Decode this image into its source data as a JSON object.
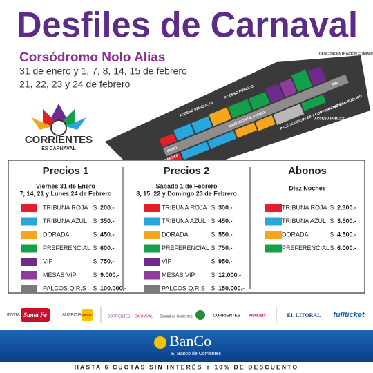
{
  "header": {
    "title": "Desfiles de Carnaval",
    "venue": "Corsódromo Nolo Alias",
    "dates": [
      "31 de enero y 1, 7, 8, 14, 15 de febrero",
      "21, 22, 23 y 24 de febrero"
    ]
  },
  "map": {
    "labels": [
      "ACCESO VEHICULAR",
      "ACCESO PÚBLICO",
      "DIRECCIÓN DE AVANCE",
      "INICIO",
      "FIN",
      "PALCOS OFICIALES Y CORPORATIVOS",
      "ACCESO PÚBLICO",
      "DESCONCENTRACIÓN COMPARSAS",
      "INGRESO COMPARSAS",
      "ACCESO PÚBLICO"
    ]
  },
  "logo": {
    "name": "CORRIENTES",
    "tagline": "ES CARNAVAL"
  },
  "prices": [
    {
      "title": "Precios 1",
      "subtitle": [
        "Viernes 31 de Enero",
        "7, 14, 21 y Lunes 24 de Febrero"
      ],
      "rows": [
        {
          "label": "TRIBUNA ROJA",
          "color": "#e3202a",
          "currency": "$",
          "amount": "200.-"
        },
        {
          "label": "TRIBUNA AZUL",
          "color": "#2aa6df",
          "currency": "$",
          "amount": "350.-"
        },
        {
          "label": "DORADA",
          "color": "#f7a51c",
          "currency": "$",
          "amount": "450.-"
        },
        {
          "label": "PREFERENCIAL",
          "color": "#14a04a",
          "currency": "$",
          "amount": "600.-"
        },
        {
          "label": "VIP",
          "color": "#6e2a8c",
          "currency": "$",
          "amount": "750.-"
        },
        {
          "label": "MESAS VIP",
          "color": "#8e3d9c",
          "currency": "$",
          "amount": "9.000.-"
        },
        {
          "label": "PALCOS Q,R,S",
          "color": "#7a7a7a",
          "currency": "$",
          "amount": "100.000.-"
        }
      ]
    },
    {
      "title": "Precios 2",
      "subtitle": [
        "Sábado 1 de Febrero",
        "8, 15, 22 y Domingo 23 de Febrero"
      ],
      "rows": [
        {
          "label": "TRIBUNA ROJA",
          "color": "#e3202a",
          "currency": "$",
          "amount": "300.-"
        },
        {
          "label": "TRIBUNA AZUL",
          "color": "#2aa6df",
          "currency": "$",
          "amount": "450.-"
        },
        {
          "label": "DORADA",
          "color": "#f7a51c",
          "currency": "$",
          "amount": "550.-"
        },
        {
          "label": "PREFERENCIAL",
          "color": "#14a04a",
          "currency": "$",
          "amount": "750.-"
        },
        {
          "label": "VIP",
          "color": "#6e2a8c",
          "currency": "$",
          "amount": "950.-"
        },
        {
          "label": "MESAS VIP",
          "color": "#8e3d9c",
          "currency": "$",
          "amount": "12.000.-"
        },
        {
          "label": "PALCOS Q,R,S",
          "color": "#7a7a7a",
          "currency": "$",
          "amount": "150.000.-"
        }
      ]
    },
    {
      "title": "Abonos",
      "subtitle": [
        "Diez Noches"
      ],
      "rows": [
        {
          "label": "TRIBUNA ROJA",
          "color": "#e3202a",
          "currency": "$",
          "amount": "2.300.-"
        },
        {
          "label": "TRIBUNA AZUL",
          "color": "#2aa6df",
          "currency": "$",
          "amount": "3.500.-"
        },
        {
          "label": "DORADA",
          "color": "#f7a51c",
          "currency": "$",
          "amount": "4.500.-"
        },
        {
          "label": "PREFERENCIAL",
          "color": "#14a04a",
          "currency": "$",
          "amount": "6.000.-"
        }
      ]
    }
  ],
  "sponsors": {
    "invita_label": "INVITA",
    "invita": "Santa Fe",
    "auspicia_label": "AUSPICIA",
    "auspicia": "Sancor",
    "logos": [
      "CORRIENTES",
      "CARNAVAL",
      "Ciudad de Corrientes",
      "CORRIENTES",
      "MDMUSIC",
      "EL LITORAL",
      "fullticket"
    ]
  },
  "bank": {
    "name": "BanCo",
    "tagline": "El Banco de Corrientes",
    "promo": "HASTA 6 CUOTAS SIN INTERÉS Y 10% DE DESCUENTO"
  }
}
